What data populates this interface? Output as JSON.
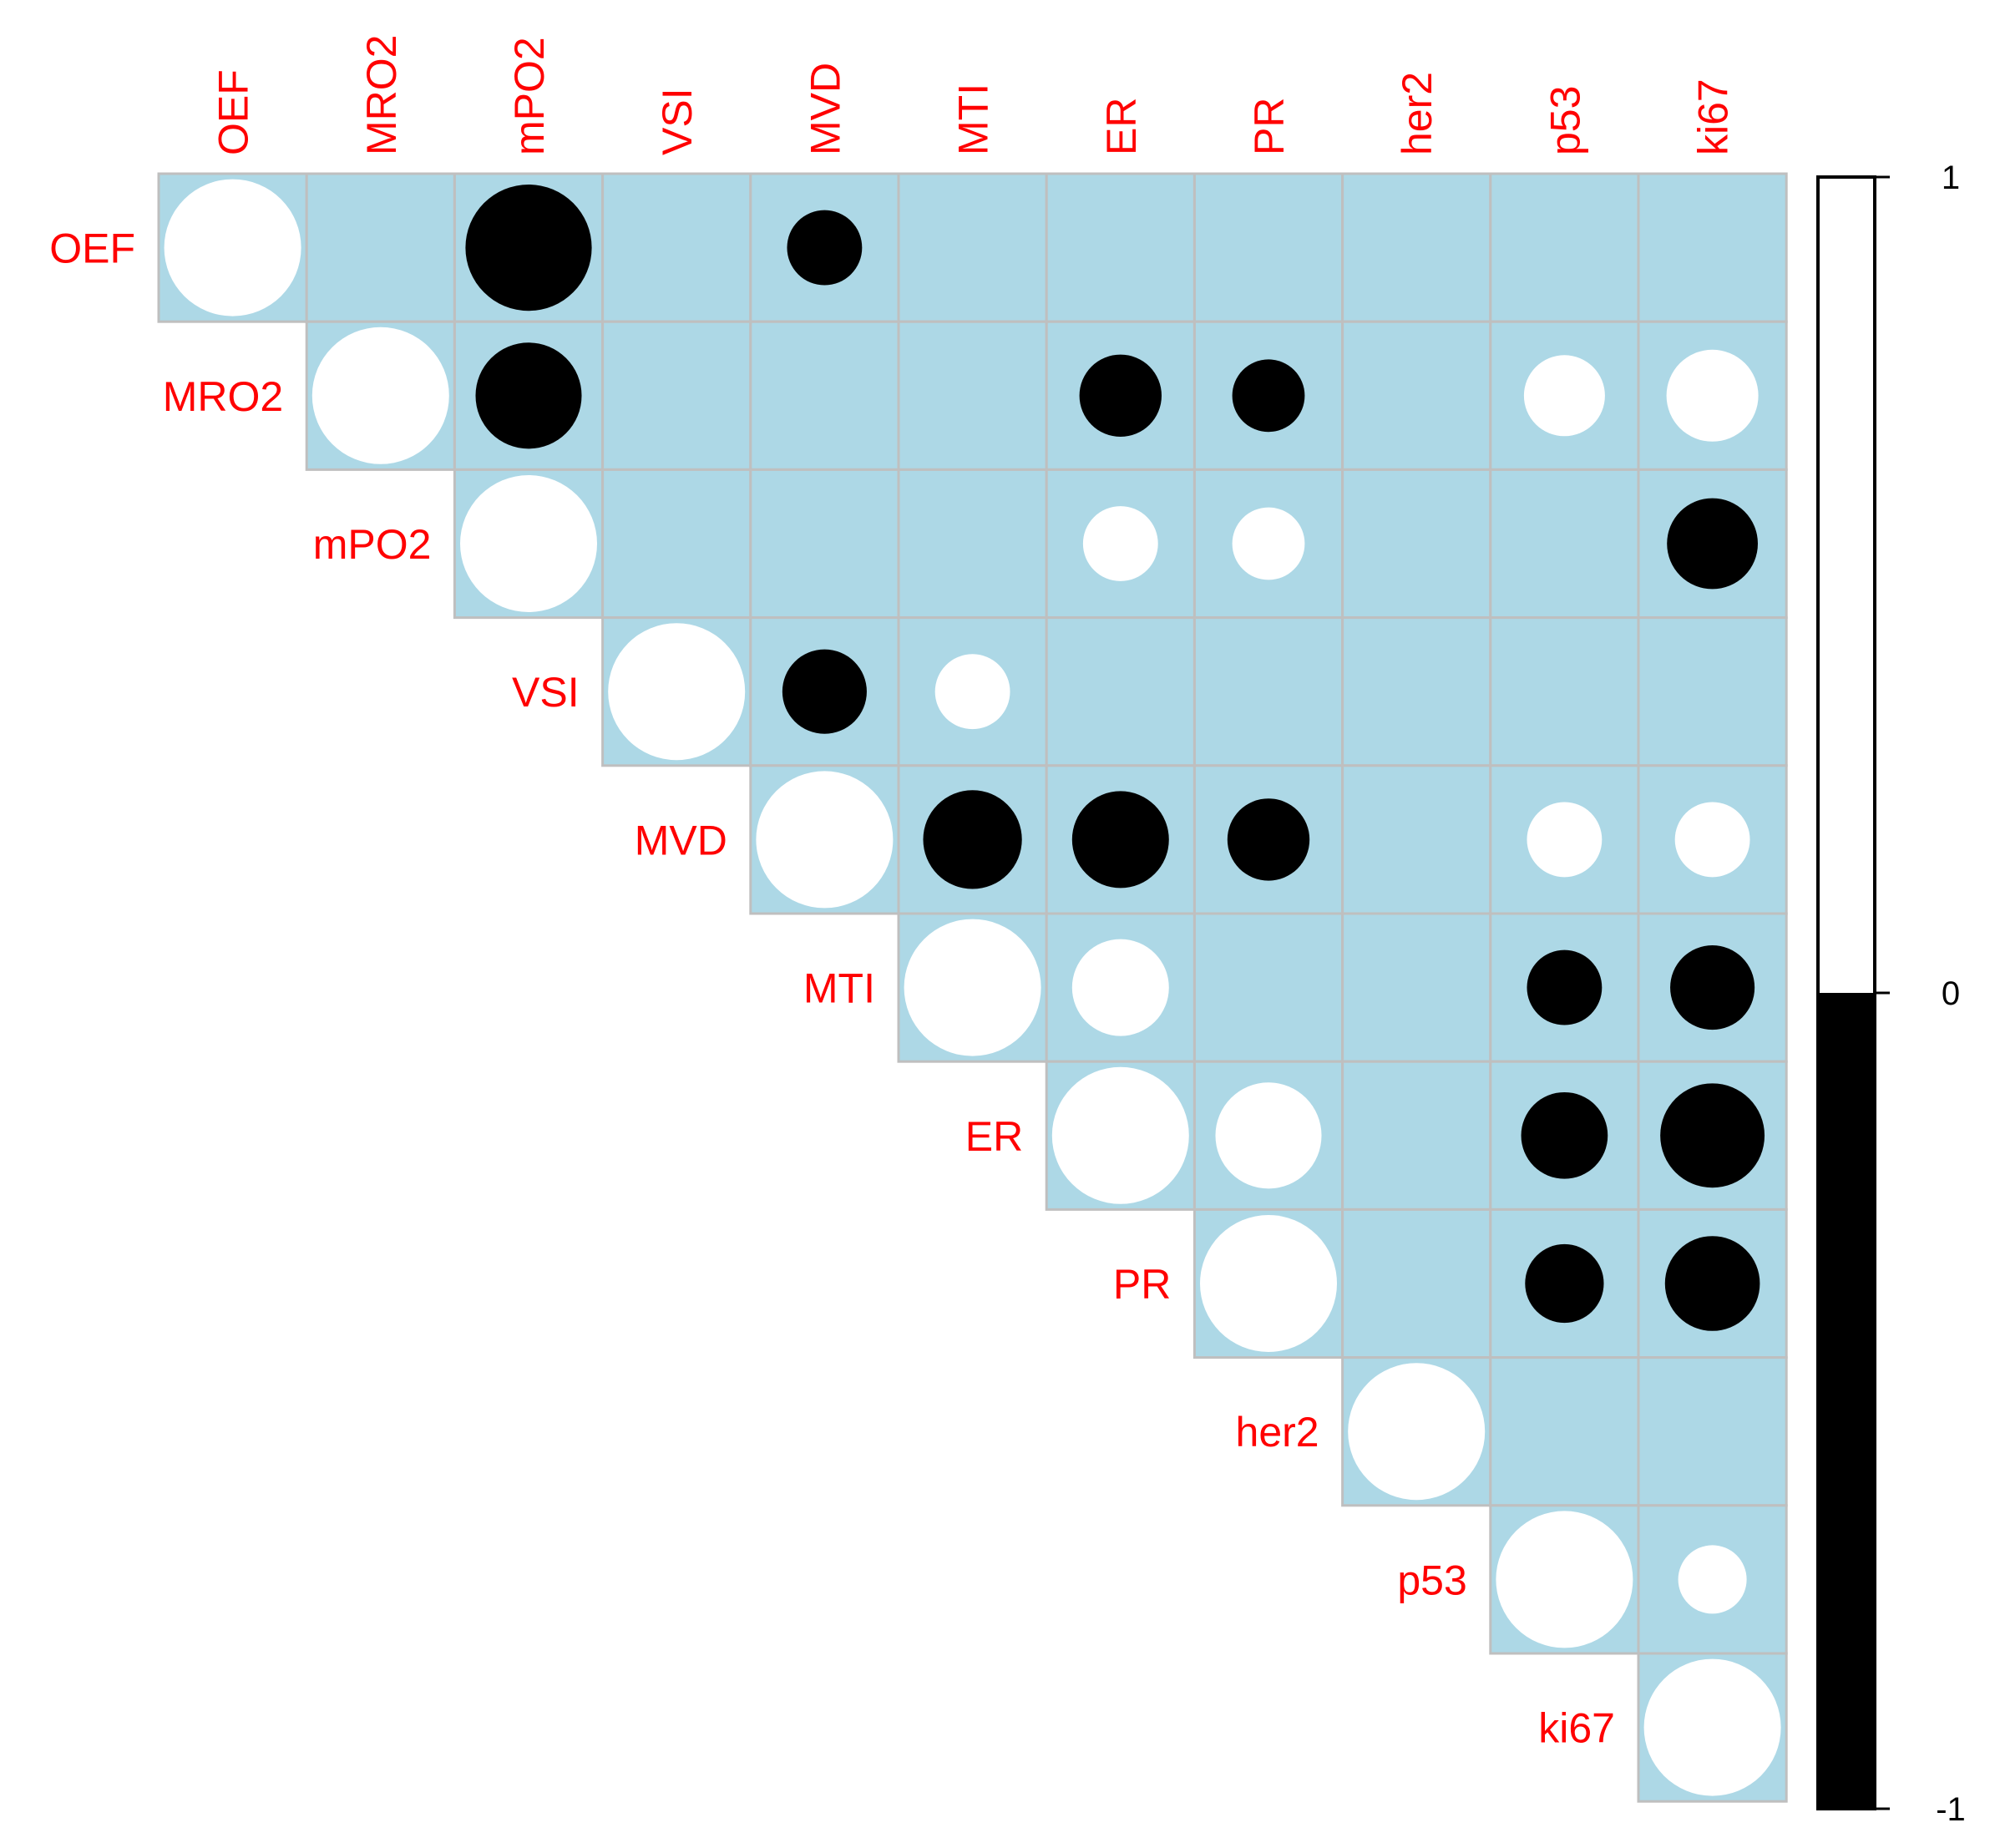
{
  "chart_data": {
    "type": "heatmap",
    "title": "",
    "xlabel": "",
    "ylabel": "",
    "variables": [
      "OEF",
      "MRO2",
      "mPO2",
      "VSI",
      "MVD",
      "MTI",
      "ER",
      "PR",
      "her2",
      "p53",
      "ki67"
    ],
    "triangle": "upper",
    "diagonal": true,
    "blank_means": "not significant",
    "cells": [
      {
        "row": "OEF",
        "col": "OEF",
        "value": 1.0
      },
      {
        "row": "OEF",
        "col": "mPO2",
        "value": -0.85
      },
      {
        "row": "OEF",
        "col": "MVD",
        "value": -0.3
      },
      {
        "row": "MRO2",
        "col": "MRO2",
        "value": 1.0
      },
      {
        "row": "MRO2",
        "col": "mPO2",
        "value": -0.6
      },
      {
        "row": "MRO2",
        "col": "ER",
        "value": -0.36
      },
      {
        "row": "MRO2",
        "col": "PR",
        "value": -0.28
      },
      {
        "row": "MRO2",
        "col": "p53",
        "value": 0.35
      },
      {
        "row": "MRO2",
        "col": "ki67",
        "value": 0.45
      },
      {
        "row": "mPO2",
        "col": "mPO2",
        "value": 1.0
      },
      {
        "row": "mPO2",
        "col": "ER",
        "value": 0.3
      },
      {
        "row": "mPO2",
        "col": "PR",
        "value": 0.28
      },
      {
        "row": "mPO2",
        "col": "ki67",
        "value": -0.44
      },
      {
        "row": "VSI",
        "col": "VSI",
        "value": 1.0
      },
      {
        "row": "VSI",
        "col": "MVD",
        "value": -0.38
      },
      {
        "row": "VSI",
        "col": "MTI",
        "value": 0.3
      },
      {
        "row": "MVD",
        "col": "MVD",
        "value": 1.0
      },
      {
        "row": "MVD",
        "col": "MTI",
        "value": -0.52
      },
      {
        "row": "MVD",
        "col": "ER",
        "value": -0.5
      },
      {
        "row": "MVD",
        "col": "PR",
        "value": -0.36
      },
      {
        "row": "MVD",
        "col": "p53",
        "value": 0.3
      },
      {
        "row": "MVD",
        "col": "ki67",
        "value": 0.3
      },
      {
        "row": "MTI",
        "col": "MTI",
        "value": 1.0
      },
      {
        "row": "MTI",
        "col": "ER",
        "value": 0.5
      },
      {
        "row": "MTI",
        "col": "p53",
        "value": -0.3
      },
      {
        "row": "MTI",
        "col": "ki67",
        "value": -0.38
      },
      {
        "row": "ER",
        "col": "ER",
        "value": 1.0
      },
      {
        "row": "ER",
        "col": "PR",
        "value": 0.6
      },
      {
        "row": "ER",
        "col": "p53",
        "value": -0.4
      },
      {
        "row": "ER",
        "col": "ki67",
        "value": -0.58
      },
      {
        "row": "PR",
        "col": "PR",
        "value": 1.0
      },
      {
        "row": "PR",
        "col": "p53",
        "value": -0.33
      },
      {
        "row": "PR",
        "col": "ki67",
        "value": -0.48
      },
      {
        "row": "her2",
        "col": "her2",
        "value": 1.0
      },
      {
        "row": "p53",
        "col": "p53",
        "value": 1.0
      },
      {
        "row": "p53",
        "col": "ki67",
        "value": 0.25
      },
      {
        "row": "ki67",
        "col": "ki67",
        "value": 1.0
      }
    ],
    "colorbar": {
      "ticks": [
        "1",
        "0",
        "-1"
      ],
      "range": [
        -1,
        1
      ],
      "positive_color": "#ffffff",
      "negative_color": "#000000"
    },
    "colors": {
      "cell_background": "#add8e6",
      "grid": "#bfbfbf",
      "label": "#ff0000",
      "tick_text": "#000000"
    }
  }
}
